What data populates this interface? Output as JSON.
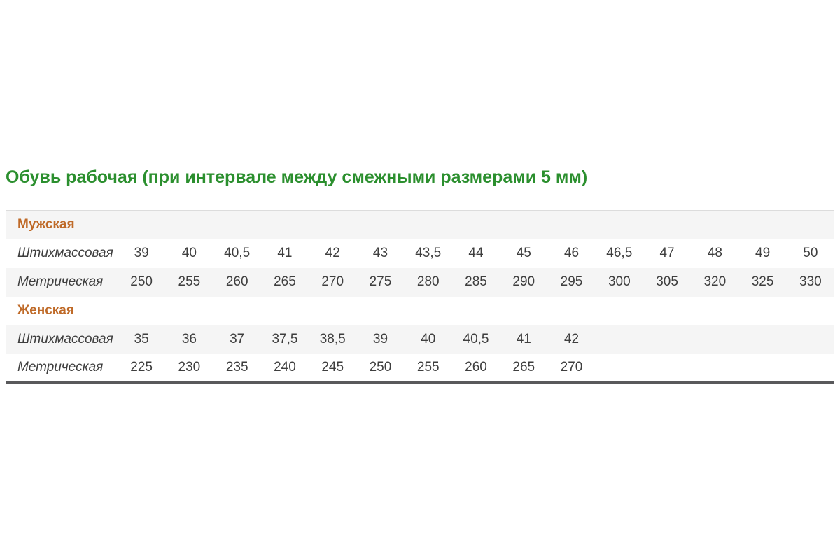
{
  "title": "Обувь рабочая (при интервале между смежными размерами 5 мм)",
  "colors": {
    "title_green": "#2b8f2e",
    "section_orange": "#bf6a28",
    "row_alt_bg": "#f5f5f5",
    "text": "#3e3e3e",
    "table_top_border": "#dcdcdc",
    "table_bottom_border": "#59595b"
  },
  "table": {
    "columns_total": 16,
    "sections": [
      {
        "label": "Мужская",
        "rows": [
          {
            "label": "Штихмассовая",
            "values": [
              "39",
              "40",
              "40,5",
              "41",
              "42",
              "43",
              "43,5",
              "44",
              "45",
              "46",
              "46,5",
              "47",
              "48",
              "49",
              "50"
            ]
          },
          {
            "label": "Метрическая",
            "values": [
              "250",
              "255",
              "260",
              "265",
              "270",
              "275",
              "280",
              "285",
              "290",
              "295",
              "300",
              "305",
              "320",
              "325",
              "330"
            ]
          }
        ]
      },
      {
        "label": "Женская",
        "rows": [
          {
            "label": "Штихмассовая",
            "values": [
              "35",
              "36",
              "37",
              "37,5",
              "38,5",
              "39",
              "40",
              "40,5",
              "41",
              "42"
            ]
          },
          {
            "label": "Метрическая",
            "values": [
              "225",
              "230",
              "235",
              "240",
              "245",
              "250",
              "255",
              "260",
              "265",
              "270"
            ]
          }
        ]
      }
    ]
  },
  "chart_data": {
    "type": "table",
    "title": "Обувь рабочая (при интервале между смежными размерами 5 мм)",
    "sections": [
      {
        "name": "Мужская",
        "shtihmass": [
          39,
          40,
          40.5,
          41,
          42,
          43,
          43.5,
          44,
          45,
          46,
          46.5,
          47,
          48,
          49,
          50
        ],
        "metric": [
          250,
          255,
          260,
          265,
          270,
          275,
          280,
          285,
          290,
          295,
          300,
          305,
          320,
          325,
          330
        ]
      },
      {
        "name": "Женская",
        "shtihmass": [
          35,
          36,
          37,
          37.5,
          38.5,
          39,
          40,
          40.5,
          41,
          42
        ],
        "metric": [
          225,
          230,
          235,
          240,
          245,
          250,
          255,
          260,
          265,
          270
        ]
      }
    ]
  }
}
